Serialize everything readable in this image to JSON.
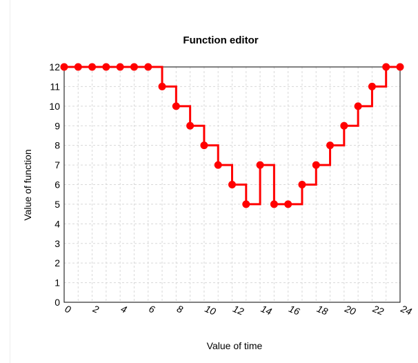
{
  "chart_data": {
    "type": "line",
    "title": "Function editor",
    "xlabel": "Value of time",
    "ylabel": "Value of function",
    "xlim": [
      0,
      24
    ],
    "ylim": [
      0,
      12
    ],
    "x_ticks": [
      "0",
      "2",
      "4",
      "6",
      "8",
      "10",
      "12",
      "14",
      "16",
      "18",
      "20",
      "22",
      "24"
    ],
    "y_ticks": [
      "0",
      "1",
      "2",
      "3",
      "4",
      "5",
      "6",
      "7",
      "8",
      "9",
      "10",
      "11",
      "12"
    ],
    "grid": true,
    "step": "post",
    "series": [
      {
        "color": "#ff0000",
        "x": [
          0,
          1,
          2,
          3,
          4,
          5,
          6,
          7,
          8,
          9,
          10,
          11,
          12,
          13,
          14,
          15,
          16,
          17,
          18,
          19,
          20,
          21,
          22,
          23,
          24
        ],
        "y": [
          12,
          12,
          12,
          12,
          12,
          12,
          12,
          11,
          10,
          9,
          8,
          7,
          6,
          5,
          7,
          5,
          5,
          6,
          7,
          8,
          9,
          10,
          11,
          12,
          12
        ]
      }
    ]
  }
}
